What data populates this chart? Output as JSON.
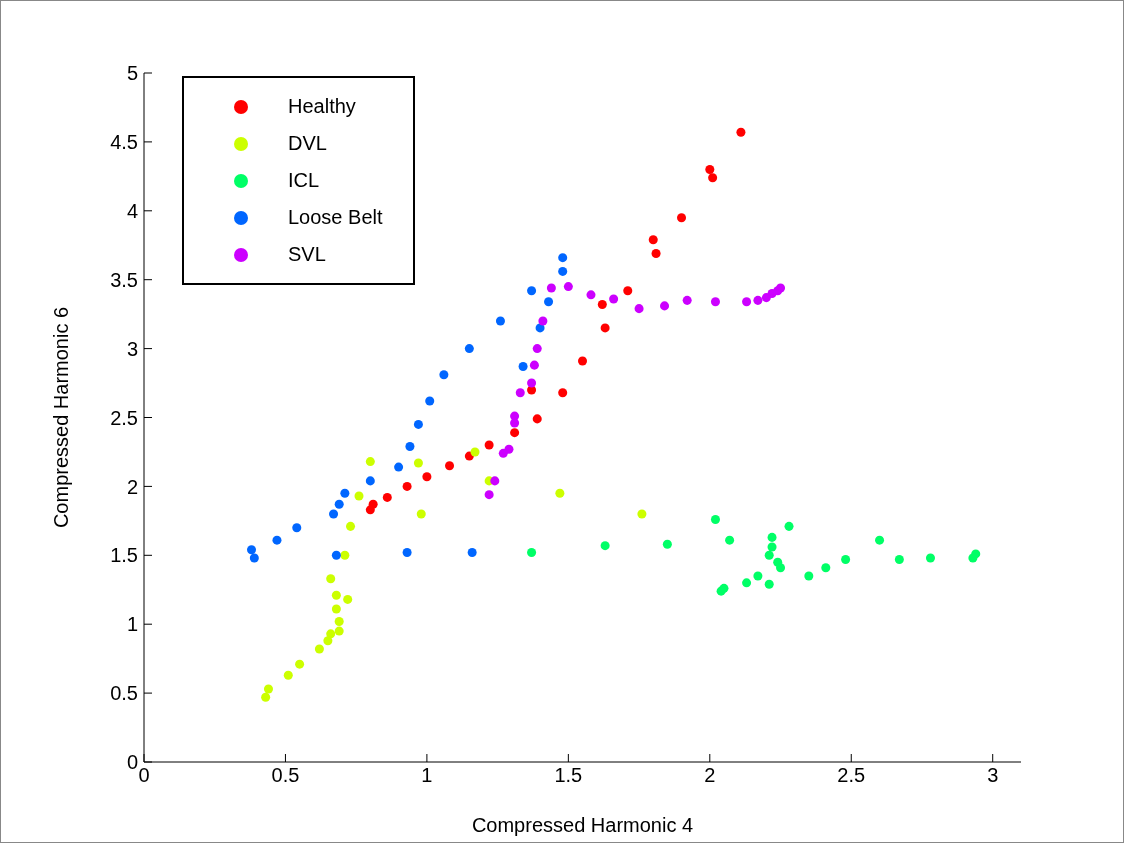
{
  "chart_data": {
    "type": "scatter",
    "xlabel": "Compressed Harmonic 4",
    "ylabel": "Compressed Harmonic 6",
    "xlim": [
      0,
      3.1
    ],
    "xticks": [
      0,
      0.5,
      1,
      1.5,
      2,
      2.5,
      3
    ],
    "ylim": [
      0,
      5
    ],
    "yticks": [
      0,
      0.5,
      1,
      1.5,
      2,
      2.5,
      3,
      3.5,
      4,
      4.5,
      5
    ],
    "grid": false,
    "legend": "top left",
    "marker": "circle",
    "series": [
      {
        "name": "Healthy",
        "color": "#ff0000",
        "x": [
          0.8,
          0.81,
          0.86,
          0.93,
          1.0,
          1.08,
          1.15,
          1.22,
          1.31,
          1.37,
          1.39,
          1.48,
          1.55,
          1.62,
          1.63,
          1.71,
          1.8,
          1.81,
          1.9,
          2.0,
          2.01,
          2.11
        ],
        "values": [
          1.83,
          1.87,
          1.92,
          2.0,
          2.07,
          2.15,
          2.22,
          2.3,
          2.39,
          2.7,
          2.49,
          2.68,
          2.91,
          3.32,
          3.15,
          3.42,
          3.79,
          3.69,
          3.95,
          4.3,
          4.24,
          4.57
        ]
      },
      {
        "name": "DVL",
        "color": "#ccff00",
        "x": [
          0.43,
          0.44,
          0.51,
          0.55,
          0.62,
          0.65,
          0.66,
          0.69,
          0.69,
          0.68,
          0.72,
          0.68,
          0.66,
          0.71,
          0.73,
          0.76,
          0.8,
          0.97,
          0.98,
          1.17,
          1.22,
          1.47,
          1.76
        ],
        "values": [
          0.47,
          0.53,
          0.63,
          0.71,
          0.82,
          0.88,
          0.93,
          0.95,
          1.02,
          1.11,
          1.18,
          1.21,
          1.33,
          1.5,
          1.71,
          1.93,
          2.18,
          2.17,
          1.8,
          2.25,
          2.04,
          1.95,
          1.8
        ]
      },
      {
        "name": "ICL",
        "color": "#00ff66",
        "x": [
          1.37,
          1.63,
          1.85,
          2.02,
          2.07,
          2.04,
          2.05,
          2.13,
          2.17,
          2.21,
          2.22,
          2.22,
          2.21,
          2.24,
          2.25,
          2.28,
          2.35,
          2.41,
          2.48,
          2.6,
          2.67,
          2.78,
          2.93,
          2.94
        ],
        "values": [
          1.52,
          1.57,
          1.58,
          1.76,
          1.61,
          1.24,
          1.26,
          1.3,
          1.35,
          1.29,
          1.63,
          1.56,
          1.5,
          1.45,
          1.41,
          1.71,
          1.35,
          1.41,
          1.47,
          1.61,
          1.47,
          1.48,
          1.48,
          1.51
        ]
      },
      {
        "name": "Loose Belt",
        "color": "#0066ff",
        "x": [
          0.38,
          0.39,
          0.47,
          0.54,
          0.67,
          0.69,
          0.71,
          0.68,
          0.8,
          0.9,
          0.94,
          0.97,
          1.01,
          1.06,
          1.15,
          1.26,
          1.34,
          1.37,
          1.4,
          1.43,
          1.48,
          1.48,
          0.93,
          1.16
        ],
        "values": [
          1.54,
          1.48,
          1.61,
          1.7,
          1.8,
          1.87,
          1.95,
          1.5,
          2.04,
          2.14,
          2.29,
          2.45,
          2.62,
          2.81,
          3.0,
          3.2,
          2.87,
          3.42,
          3.15,
          3.34,
          3.56,
          3.66,
          1.52,
          1.52
        ]
      },
      {
        "name": "SVL",
        "color": "#cc00ff",
        "x": [
          1.22,
          1.24,
          1.27,
          1.29,
          1.31,
          1.31,
          1.33,
          1.37,
          1.38,
          1.39,
          1.41,
          1.44,
          1.5,
          1.58,
          1.66,
          1.75,
          1.84,
          1.92,
          2.02,
          2.13,
          2.17,
          2.2,
          2.22,
          2.24,
          2.25
        ],
        "values": [
          1.94,
          2.04,
          2.24,
          2.27,
          2.46,
          2.51,
          2.68,
          2.75,
          2.88,
          3.0,
          3.2,
          3.44,
          3.45,
          3.39,
          3.36,
          3.29,
          3.31,
          3.35,
          3.34,
          3.34,
          3.35,
          3.37,
          3.4,
          3.42,
          3.44
        ]
      }
    ]
  }
}
